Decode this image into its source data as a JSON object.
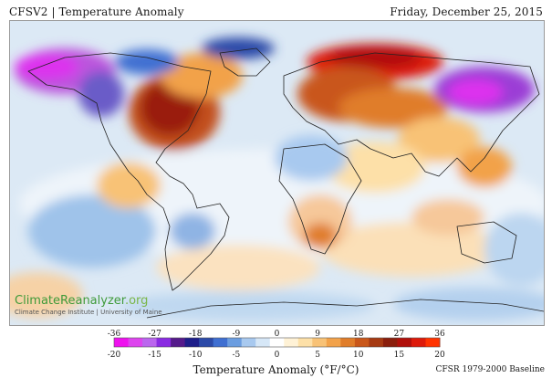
{
  "header": {
    "title": "CFSV2 | Temperature Anomaly",
    "date": "Friday, December 25, 2015"
  },
  "branding": {
    "name_main": "ClimateReanalyzer",
    "name_tld": ".org",
    "subtitle": "Climate Change Institute | University of Maine"
  },
  "legend": {
    "title": "Temperature Anomaly (°F/°C)",
    "fahrenheit_ticks": [
      "-36",
      "-27",
      "-18",
      "-9",
      "0",
      "9",
      "18",
      "27",
      "36"
    ],
    "celsius_ticks": [
      "-20",
      "-15",
      "-10",
      "-5",
      "0",
      "5",
      "10",
      "15",
      "20"
    ],
    "colors": [
      "#ee11ee",
      "#dd44ee",
      "#bb66ee",
      "#8a2be2",
      "#551a8b",
      "#1e1e8a",
      "#2c4aa8",
      "#3f6fd1",
      "#6b9de0",
      "#a8c9ef",
      "#d6e7f7",
      "#ffffff",
      "#fff2d6",
      "#fde0a8",
      "#f8c276",
      "#f2a24a",
      "#e07d2a",
      "#c9571a",
      "#a63a12",
      "#8a1e0c",
      "#b0100a",
      "#dd1a0a",
      "#ff3300"
    ]
  },
  "footer": {
    "baseline": "CFSR 1979-2000 Baseline"
  },
  "map_colors": {
    "background": "#d8e8f4",
    "land_outline": "#222222"
  }
}
